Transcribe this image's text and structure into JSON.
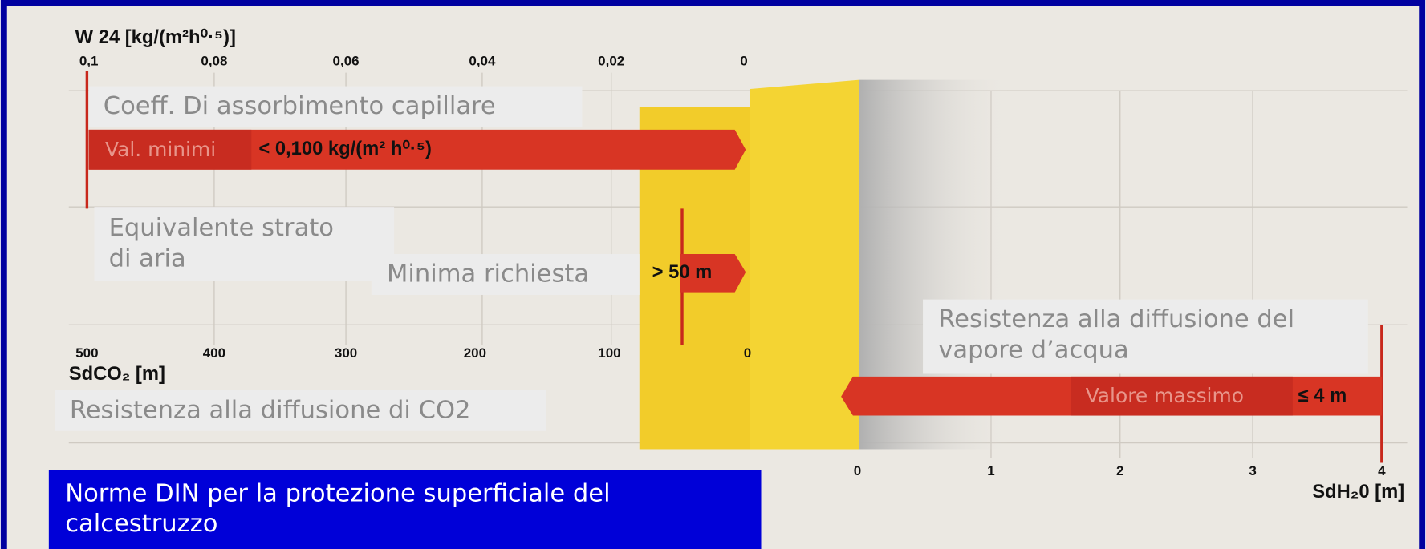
{
  "top_axis": {
    "title": "W 24 [kg/(m²h⁰·⁵)]",
    "ticks": [
      "0,1",
      "0,08",
      "0,06",
      "0,04",
      "0,02",
      "0"
    ]
  },
  "bottom_axis": {
    "title": "SdCO₂ [m]",
    "ticks": [
      "500",
      "400",
      "300",
      "200",
      "100",
      "0"
    ]
  },
  "right_axis": {
    "title": "SdH₂0 [m]",
    "ticks": [
      "0",
      "1",
      "2",
      "3",
      "4"
    ]
  },
  "capillary": {
    "label": "Coeff. Di assorbimento capillare",
    "tag": "Val. minimi",
    "value": "< 0,100 kg/(m² h⁰·⁵)"
  },
  "air_layer": {
    "label": [
      "Equivalente strato",
      "di aria"
    ],
    "tag": "Minima richiesta",
    "value": "> 50 m"
  },
  "co2": {
    "label": "Resistenza alla diffusione di CO2"
  },
  "vapour": {
    "label": [
      "Resistenza alla diffusione del",
      "vapore d’acqua"
    ],
    "tag": "Valore massimo",
    "value": "≤ 4 m"
  },
  "footer": [
    "Norme DIN per la protezione superficiale del",
    "calcestruzzo"
  ]
}
